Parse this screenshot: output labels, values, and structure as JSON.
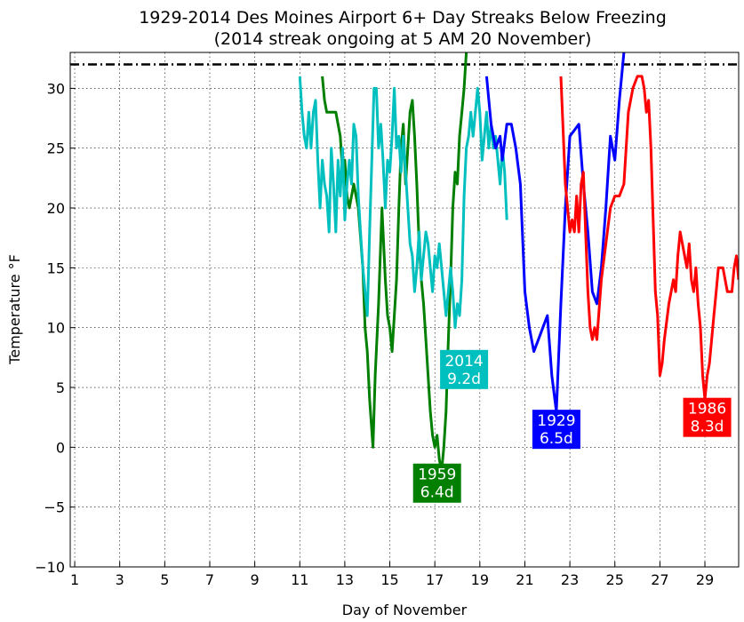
{
  "chart_data": {
    "type": "line",
    "title": "1929-2014 Des Moines Airport 6+ Day Streaks Below Freezing",
    "subtitle": "(2014 streak ongoing at 5 AM 20 November)",
    "xlabel": "Day of November",
    "ylabel": "Temperature °F",
    "xlim": [
      0.8,
      30.5
    ],
    "ylim": [
      -10,
      33
    ],
    "x_ticks": [
      1,
      3,
      5,
      7,
      9,
      11,
      13,
      15,
      17,
      19,
      21,
      23,
      25,
      27,
      29
    ],
    "y_ticks": [
      -10,
      -5,
      0,
      5,
      10,
      15,
      20,
      25,
      30
    ],
    "grid": true,
    "reference_line": {
      "y": 32,
      "style": "dash-dot",
      "color": "#000000"
    },
    "series": [
      {
        "name": "1959",
        "color": "#007f00",
        "label_lines": [
          "1959",
          "6.4d"
        ],
        "label_at": [
          17.1,
          -3
        ],
        "points": [
          [
            12.0,
            31
          ],
          [
            12.1,
            29
          ],
          [
            12.2,
            28
          ],
          [
            12.4,
            28
          ],
          [
            12.6,
            28
          ],
          [
            12.7,
            27
          ],
          [
            12.8,
            26
          ],
          [
            12.9,
            23
          ],
          [
            13.0,
            24
          ],
          [
            13.1,
            21
          ],
          [
            13.2,
            20
          ],
          [
            13.4,
            22
          ],
          [
            13.6,
            20
          ],
          [
            13.8,
            15
          ],
          [
            13.9,
            10
          ],
          [
            14.0,
            8
          ],
          [
            14.1,
            4
          ],
          [
            14.25,
            0
          ],
          [
            14.35,
            6
          ],
          [
            14.5,
            12
          ],
          [
            14.65,
            20
          ],
          [
            14.8,
            14
          ],
          [
            14.9,
            11
          ],
          [
            15.0,
            10
          ],
          [
            15.1,
            8
          ],
          [
            15.2,
            11
          ],
          [
            15.3,
            14
          ],
          [
            15.4,
            20
          ],
          [
            15.5,
            25
          ],
          [
            15.6,
            27
          ],
          [
            15.7,
            22
          ],
          [
            15.8,
            25
          ],
          [
            15.9,
            28
          ],
          [
            16.0,
            29
          ],
          [
            16.1,
            26
          ],
          [
            16.2,
            22
          ],
          [
            16.3,
            17
          ],
          [
            16.4,
            14
          ],
          [
            16.5,
            12
          ],
          [
            16.6,
            9
          ],
          [
            16.7,
            6
          ],
          [
            16.8,
            3
          ],
          [
            16.9,
            1
          ],
          [
            17.0,
            0
          ],
          [
            17.1,
            1
          ],
          [
            17.2,
            -1
          ],
          [
            17.3,
            -2
          ],
          [
            17.4,
            0
          ],
          [
            17.5,
            3
          ],
          [
            17.6,
            9
          ],
          [
            17.7,
            14
          ],
          [
            17.8,
            20
          ],
          [
            17.9,
            23
          ],
          [
            18.0,
            22
          ],
          [
            18.1,
            26
          ],
          [
            18.2,
            28
          ],
          [
            18.3,
            30
          ],
          [
            18.4,
            33
          ]
        ]
      },
      {
        "name": "2014",
        "color": "#00bfbf",
        "label_lines": [
          "2014",
          "9.2d"
        ],
        "label_at": [
          18.3,
          6.5
        ],
        "points": [
          [
            11.0,
            31
          ],
          [
            11.1,
            28
          ],
          [
            11.2,
            26
          ],
          [
            11.3,
            25
          ],
          [
            11.4,
            28
          ],
          [
            11.5,
            25
          ],
          [
            11.6,
            28
          ],
          [
            11.7,
            29
          ],
          [
            11.8,
            24
          ],
          [
            11.9,
            20
          ],
          [
            12.0,
            24
          ],
          [
            12.1,
            22
          ],
          [
            12.2,
            21
          ],
          [
            12.3,
            18
          ],
          [
            12.4,
            25
          ],
          [
            12.5,
            22
          ],
          [
            12.6,
            18
          ],
          [
            12.7,
            24
          ],
          [
            12.8,
            21
          ],
          [
            12.9,
            25
          ],
          [
            13.0,
            19
          ],
          [
            13.1,
            22
          ],
          [
            13.2,
            24
          ],
          [
            13.3,
            22
          ],
          [
            13.4,
            27
          ],
          [
            13.5,
            26
          ],
          [
            13.6,
            21
          ],
          [
            13.7,
            18
          ],
          [
            13.8,
            15
          ],
          [
            13.9,
            13
          ],
          [
            14.0,
            11
          ],
          [
            14.1,
            18
          ],
          [
            14.2,
            24
          ],
          [
            14.3,
            30
          ],
          [
            14.4,
            30
          ],
          [
            14.5,
            25
          ],
          [
            14.6,
            27
          ],
          [
            14.7,
            24
          ],
          [
            14.8,
            20
          ],
          [
            14.9,
            24
          ],
          [
            15.0,
            23
          ],
          [
            15.1,
            26
          ],
          [
            15.2,
            30
          ],
          [
            15.3,
            25
          ],
          [
            15.4,
            26
          ],
          [
            15.5,
            23
          ],
          [
            15.6,
            26
          ],
          [
            15.7,
            23
          ],
          [
            15.8,
            20
          ],
          [
            15.9,
            17
          ],
          [
            16.0,
            16
          ],
          [
            16.1,
            13
          ],
          [
            16.2,
            15
          ],
          [
            16.3,
            18
          ],
          [
            16.4,
            14
          ],
          [
            16.5,
            16
          ],
          [
            16.6,
            18
          ],
          [
            16.7,
            17
          ],
          [
            16.8,
            15
          ],
          [
            16.9,
            13
          ],
          [
            17.0,
            16
          ],
          [
            17.1,
            15
          ],
          [
            17.2,
            17
          ],
          [
            17.3,
            15
          ],
          [
            17.4,
            13
          ],
          [
            17.5,
            11
          ],
          [
            17.6,
            13
          ],
          [
            17.7,
            15
          ],
          [
            17.8,
            13
          ],
          [
            17.9,
            10
          ],
          [
            18.0,
            12
          ],
          [
            18.1,
            11
          ],
          [
            18.2,
            14
          ],
          [
            18.3,
            21
          ],
          [
            18.4,
            25
          ],
          [
            18.5,
            26
          ],
          [
            18.6,
            28
          ],
          [
            18.7,
            26
          ],
          [
            18.8,
            28
          ],
          [
            18.9,
            30
          ],
          [
            19.0,
            28
          ],
          [
            19.1,
            24
          ],
          [
            19.2,
            26
          ],
          [
            19.3,
            28
          ],
          [
            19.4,
            25
          ],
          [
            19.5,
            27
          ],
          [
            19.6,
            25
          ],
          [
            19.7,
            26
          ],
          [
            19.8,
            24
          ],
          [
            19.9,
            22
          ],
          [
            20.0,
            25
          ],
          [
            20.1,
            23
          ],
          [
            20.2,
            19
          ]
        ]
      },
      {
        "name": "1929",
        "color": "#0000ff",
        "label_lines": [
          "1929",
          "6.5d"
        ],
        "label_at": [
          22.4,
          1.5
        ],
        "points": [
          [
            19.3,
            31
          ],
          [
            19.5,
            27
          ],
          [
            19.7,
            25
          ],
          [
            19.9,
            26
          ],
          [
            20.0,
            24
          ],
          [
            20.2,
            27
          ],
          [
            20.4,
            27
          ],
          [
            20.6,
            25
          ],
          [
            20.8,
            22
          ],
          [
            21.0,
            13
          ],
          [
            21.2,
            10
          ],
          [
            21.4,
            8
          ],
          [
            21.6,
            9
          ],
          [
            21.8,
            10
          ],
          [
            22.0,
            11
          ],
          [
            22.2,
            6
          ],
          [
            22.4,
            3
          ],
          [
            22.6,
            12
          ],
          [
            22.8,
            20
          ],
          [
            23.0,
            26
          ],
          [
            23.2,
            26.5
          ],
          [
            23.4,
            27
          ],
          [
            23.6,
            22
          ],
          [
            23.8,
            18
          ],
          [
            24.0,
            13
          ],
          [
            24.2,
            12
          ],
          [
            24.4,
            15
          ],
          [
            24.6,
            20
          ],
          [
            24.8,
            26
          ],
          [
            25.0,
            24
          ],
          [
            25.2,
            29
          ],
          [
            25.4,
            33
          ]
        ]
      },
      {
        "name": "1986",
        "color": "#ff0000",
        "label_lines": [
          "1986",
          "8.3d"
        ],
        "label_at": [
          29.1,
          2.5
        ],
        "points": [
          [
            22.6,
            31
          ],
          [
            22.8,
            22
          ],
          [
            23.0,
            18
          ],
          [
            23.1,
            19
          ],
          [
            23.2,
            18
          ],
          [
            23.3,
            21
          ],
          [
            23.4,
            18
          ],
          [
            23.5,
            22
          ],
          [
            23.6,
            23
          ],
          [
            23.7,
            18
          ],
          [
            23.8,
            13
          ],
          [
            23.9,
            10
          ],
          [
            24.0,
            9
          ],
          [
            24.1,
            10
          ],
          [
            24.2,
            9
          ],
          [
            24.4,
            14
          ],
          [
            24.6,
            17
          ],
          [
            24.8,
            20
          ],
          [
            25.0,
            21
          ],
          [
            25.2,
            21
          ],
          [
            25.4,
            22
          ],
          [
            25.6,
            28
          ],
          [
            25.8,
            30
          ],
          [
            26.0,
            31
          ],
          [
            26.2,
            31
          ],
          [
            26.3,
            30
          ],
          [
            26.4,
            28
          ],
          [
            26.5,
            29
          ],
          [
            26.6,
            25
          ],
          [
            26.8,
            13
          ],
          [
            26.9,
            11
          ],
          [
            27.0,
            6
          ],
          [
            27.1,
            7
          ],
          [
            27.2,
            9
          ],
          [
            27.4,
            12
          ],
          [
            27.6,
            14
          ],
          [
            27.7,
            13
          ],
          [
            27.8,
            16
          ],
          [
            27.9,
            18
          ],
          [
            28.0,
            17
          ],
          [
            28.1,
            16
          ],
          [
            28.2,
            15
          ],
          [
            28.3,
            17
          ],
          [
            28.4,
            14
          ],
          [
            28.5,
            13
          ],
          [
            28.6,
            15
          ],
          [
            28.7,
            12
          ],
          [
            28.8,
            10
          ],
          [
            28.9,
            6
          ],
          [
            29.0,
            4
          ],
          [
            29.1,
            6
          ],
          [
            29.2,
            7
          ],
          [
            29.3,
            9
          ],
          [
            29.4,
            11
          ],
          [
            29.5,
            13
          ],
          [
            29.6,
            15
          ],
          [
            29.8,
            15
          ],
          [
            30.0,
            13
          ],
          [
            30.2,
            13
          ],
          [
            30.3,
            15
          ],
          [
            30.4,
            16
          ],
          [
            30.5,
            14
          ]
        ]
      }
    ]
  }
}
